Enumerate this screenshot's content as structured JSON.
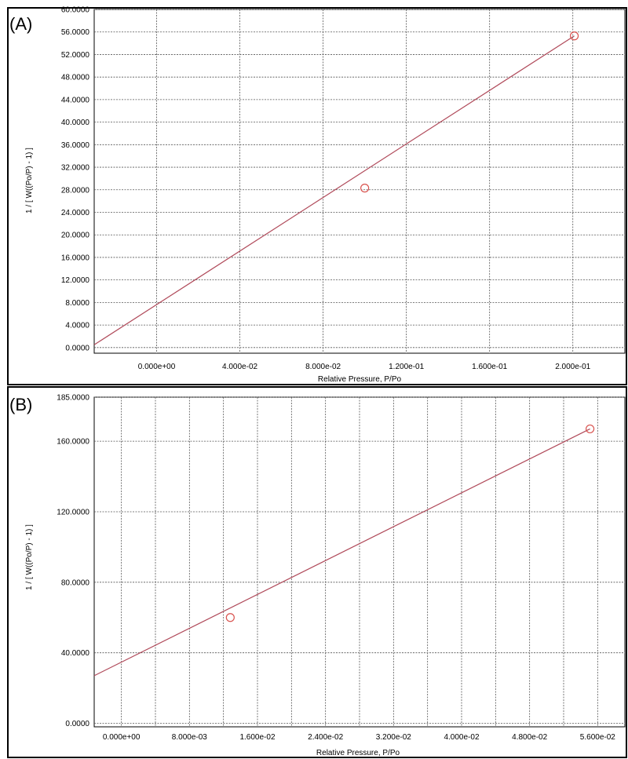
{
  "chart_data": [
    {
      "panel_label": "(A)",
      "type": "scatter",
      "xlabel": "Relative Pressure, P/Po",
      "ylabel": "1 / [ W((Po/P) - 1) ]",
      "xlim": [
        -0.03,
        0.225
      ],
      "ylim": [
        -1.0,
        60.0
      ],
      "x_ticks": [
        0.0,
        0.04,
        0.08,
        0.12,
        0.16,
        0.2
      ],
      "x_tick_labels": [
        "0.000e+00",
        "4.000e-02",
        "8.000e-02",
        "1.200e-01",
        "1.600e-01",
        "2.000e-01"
      ],
      "y_ticks": [
        0,
        4,
        8,
        12,
        16,
        20,
        24,
        28,
        32,
        36,
        40,
        44,
        48,
        52,
        56,
        60
      ],
      "y_tick_labels": [
        "0.0000",
        "4.0000",
        "8.0000",
        "12.0000",
        "16.0000",
        "20.0000",
        "24.0000",
        "28.0000",
        "32.0000",
        "36.0000",
        "40.0000",
        "44.0000",
        "48.0000",
        "52.0000",
        "56.0000",
        "60.0000"
      ],
      "grid": true,
      "points": [
        {
          "x": 0.1,
          "y": 28.3
        },
        {
          "x": 0.2007,
          "y": 55.3
        }
      ],
      "fit_line": [
        {
          "x": -0.03,
          "y": 0.5
        },
        {
          "x": 0.2007,
          "y": 55.3
        }
      ]
    },
    {
      "panel_label": "(B)",
      "type": "scatter",
      "xlabel": "Relative Pressure, P/Po",
      "ylabel": "1 / [ W((Po/P) - 1) ]",
      "xlim": [
        -0.0032,
        0.0592
      ],
      "ylim": [
        -2.0,
        185.0
      ],
      "x_ticks": [
        0.0,
        0.008,
        0.016,
        0.024,
        0.032,
        0.04,
        0.048,
        0.056
      ],
      "x_tick_labels": [
        "0.000e+00",
        "8.000e-03",
        "1.600e-02",
        "2.400e-02",
        "3.200e-02",
        "4.000e-02",
        "4.800e-02",
        "5.600e-02"
      ],
      "x_grid": [
        0.0,
        0.004,
        0.008,
        0.012,
        0.016,
        0.02,
        0.024,
        0.028,
        0.032,
        0.036,
        0.04,
        0.044,
        0.048,
        0.052,
        0.056
      ],
      "y_ticks": [
        0,
        40,
        80,
        120,
        160,
        185
      ],
      "y_tick_labels": [
        "0.0000",
        "40.0000",
        "80.0000",
        "120.0000",
        "160.0000",
        "185.0000"
      ],
      "grid": true,
      "points": [
        {
          "x": 0.0128,
          "y": 60.0
        },
        {
          "x": 0.0551,
          "y": 167.0
        }
      ],
      "fit_line": [
        {
          "x": -0.0032,
          "y": 27.0
        },
        {
          "x": 0.0551,
          "y": 167.0
        }
      ]
    }
  ]
}
